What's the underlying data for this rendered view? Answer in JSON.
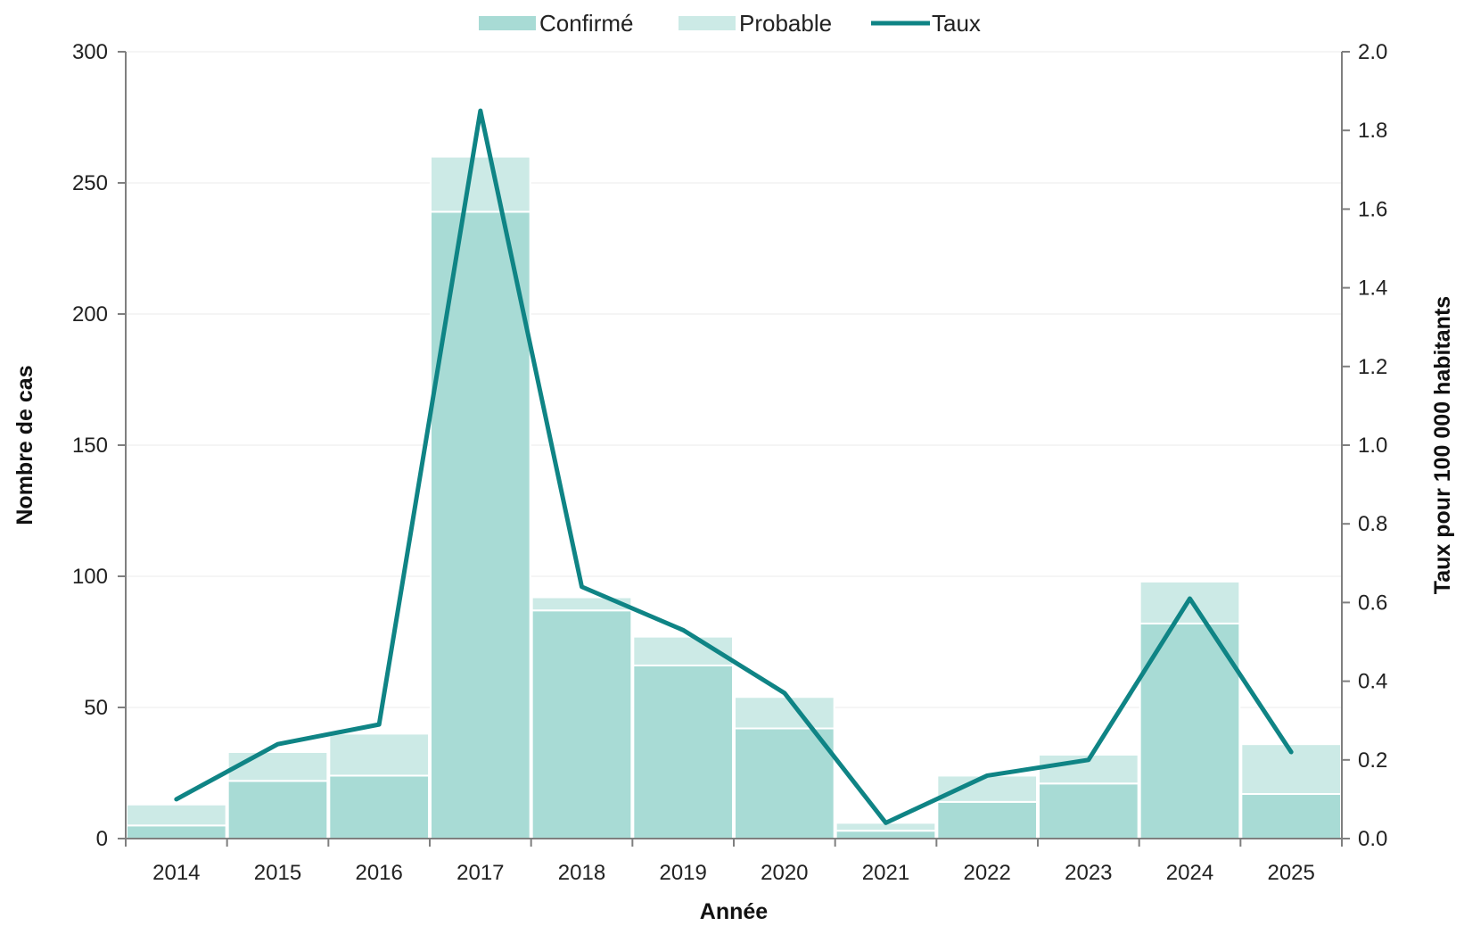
{
  "chart_data": {
    "type": "bar",
    "stacked": true,
    "categories": [
      "2014",
      "2015",
      "2016",
      "2017",
      "2018",
      "2019",
      "2020",
      "2021",
      "2022",
      "2023",
      "2024",
      "2025"
    ],
    "series": [
      {
        "name": "Confirmé",
        "kind": "bar",
        "axis": "left",
        "color": "#a8dbd5",
        "values": [
          5,
          22,
          24,
          239,
          87,
          66,
          42,
          3,
          14,
          21,
          82,
          17
        ]
      },
      {
        "name": "Probable",
        "kind": "bar",
        "axis": "left",
        "color": "#cceae6",
        "values": [
          8,
          11,
          16,
          21,
          5,
          11,
          12,
          3,
          10,
          11,
          16,
          19
        ]
      },
      {
        "name": "Taux",
        "kind": "line",
        "axis": "right",
        "color": "#0f8485",
        "values": [
          0.1,
          0.24,
          0.29,
          1.85,
          0.64,
          0.53,
          0.37,
          0.04,
          0.16,
          0.2,
          0.61,
          0.22
        ]
      }
    ],
    "xlabel": "Année",
    "ylabel": "Nombre de cas",
    "y2label": "Taux pour 100 000 habitants",
    "ylim": [
      0,
      300
    ],
    "yticks": [
      "0",
      "50",
      "100",
      "150",
      "200",
      "250",
      "300"
    ],
    "y2lim": [
      0,
      2.0
    ],
    "y2ticks": [
      "0.0",
      "0.2",
      "0.4",
      "0.6",
      "0.8",
      "1.0",
      "1.2",
      "1.4",
      "1.6",
      "1.8",
      "2.0"
    ],
    "grid": true,
    "legend_position": "top-center"
  }
}
